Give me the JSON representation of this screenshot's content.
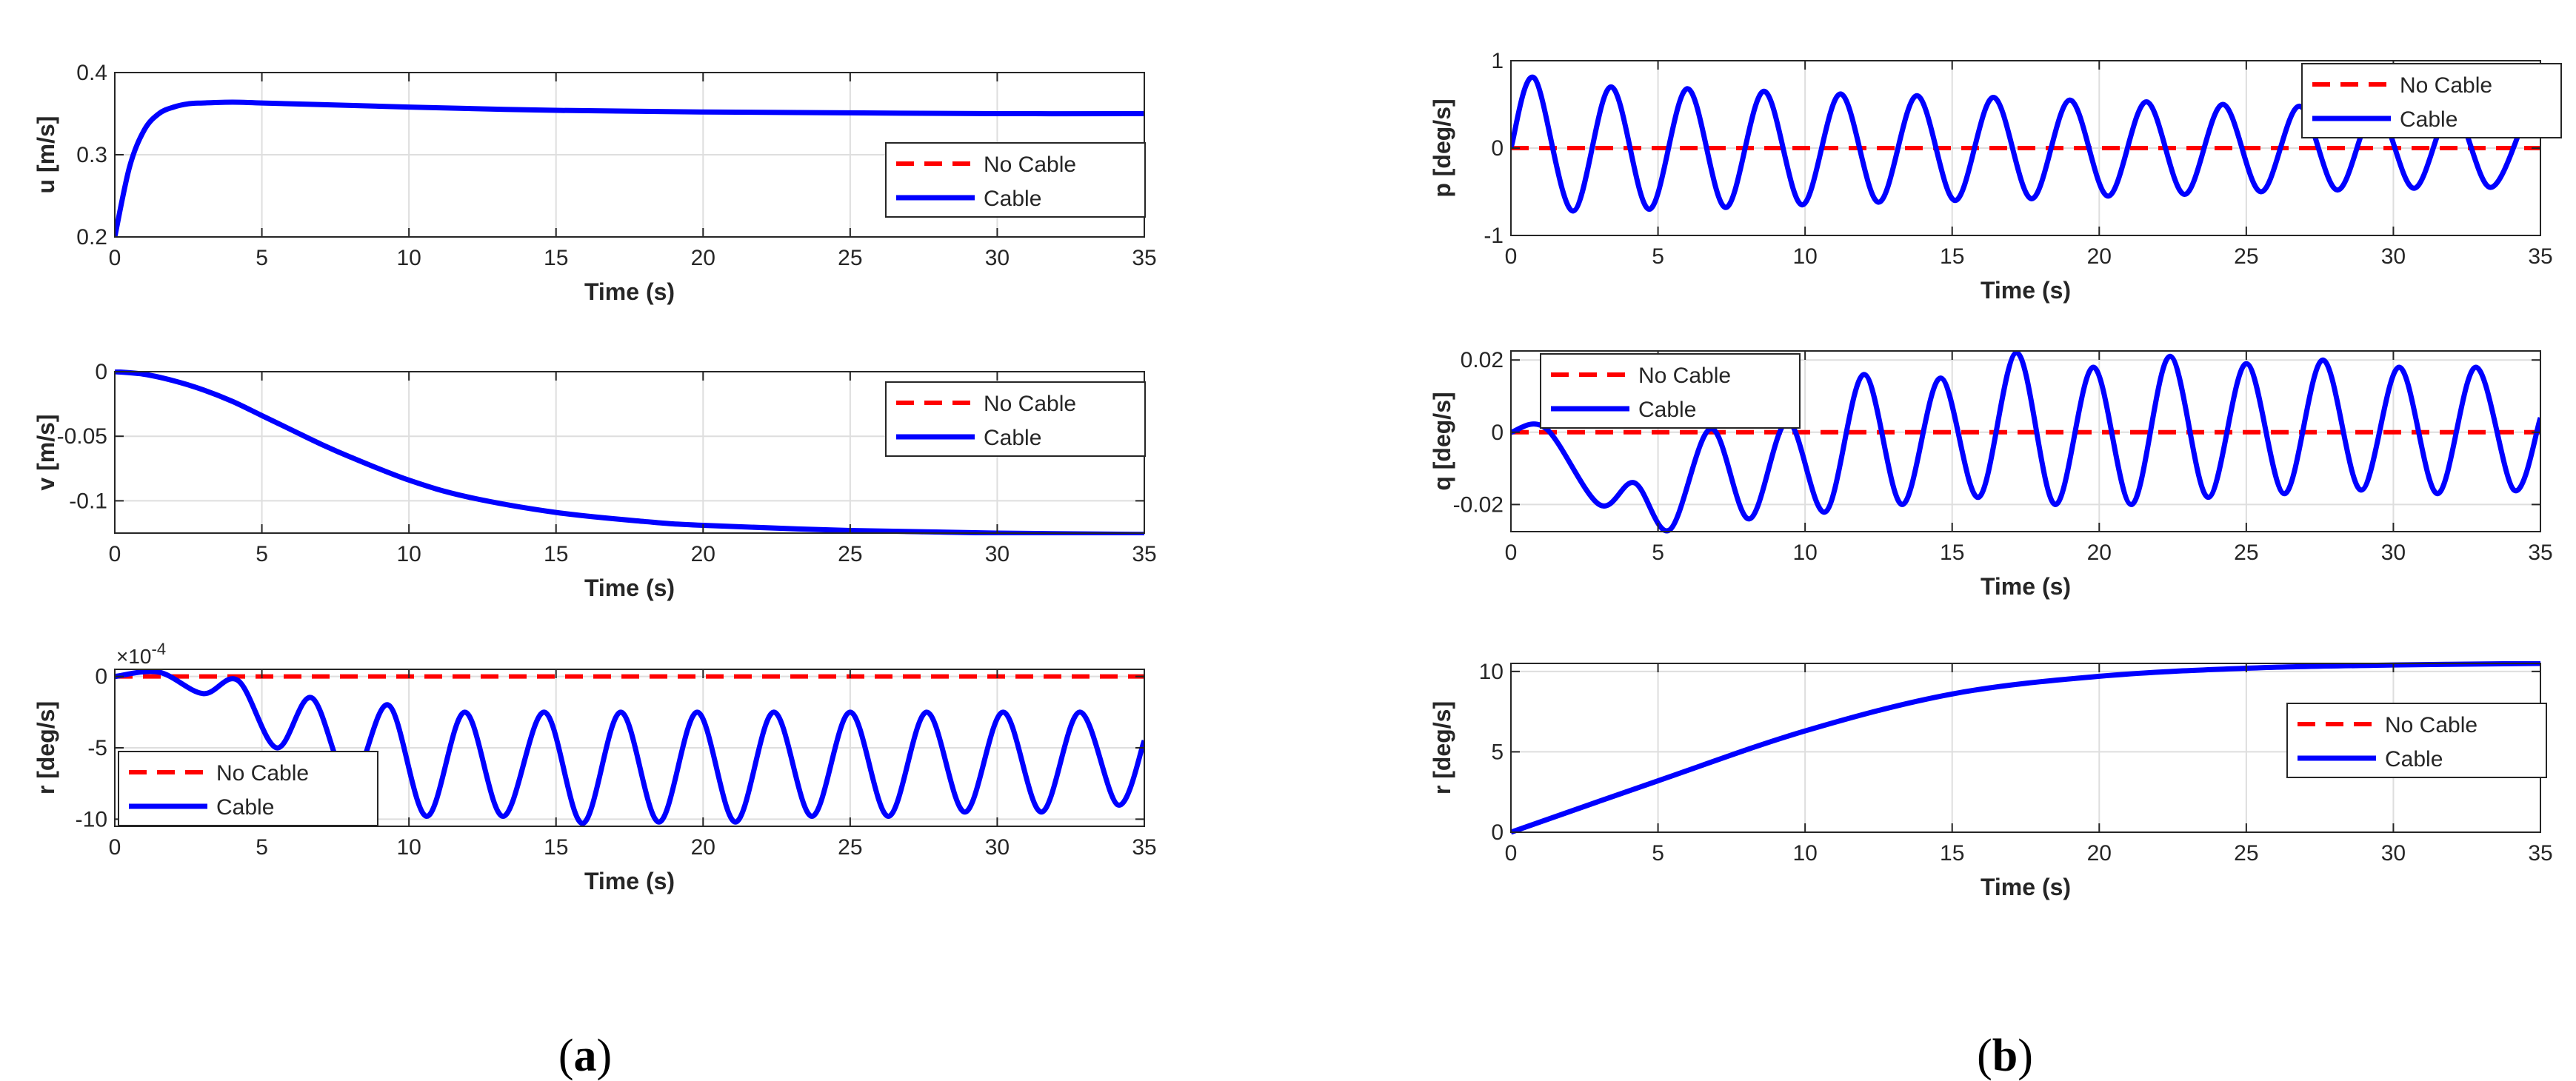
{
  "chart_data": [
    {
      "type": "line",
      "ylabel": "u [m/s]",
      "xlabel": "Time (s)",
      "xlim": [
        0,
        35
      ],
      "ylim": [
        0.2,
        0.4
      ],
      "xticks": [
        "0",
        "5",
        "10",
        "15",
        "20",
        "25",
        "30",
        "35"
      ],
      "yticks": [
        "0.2",
        "0.3",
        "0.4"
      ],
      "exponent": "",
      "grid": true,
      "legend_position": "right",
      "series": [
        {
          "name": "No Cable",
          "color": "#ff0000",
          "dash": true,
          "x": [
            0,
            0.5,
            1,
            1.5,
            2,
            2.5,
            3,
            4,
            5,
            7,
            10,
            15,
            20,
            25,
            30,
            35
          ],
          "y": [
            0.2,
            0.285,
            0.33,
            0.35,
            0.358,
            0.362,
            0.363,
            0.364,
            0.363,
            0.361,
            0.358,
            0.354,
            0.352,
            0.351,
            0.35,
            0.35
          ]
        },
        {
          "name": "Cable",
          "color": "#0000ff",
          "dash": false,
          "x": [
            0,
            0.5,
            1,
            1.5,
            2,
            2.5,
            3,
            4,
            5,
            7,
            10,
            15,
            20,
            25,
            30,
            35
          ],
          "y": [
            0.2,
            0.285,
            0.33,
            0.35,
            0.358,
            0.362,
            0.363,
            0.364,
            0.363,
            0.361,
            0.358,
            0.354,
            0.352,
            0.351,
            0.35,
            0.35
          ]
        }
      ]
    },
    {
      "type": "line",
      "ylabel": "v [m/s]",
      "xlabel": "Time (s)",
      "xlim": [
        0,
        35
      ],
      "ylim": [
        -0.125,
        0
      ],
      "xticks": [
        "0",
        "5",
        "10",
        "15",
        "20",
        "25",
        "30",
        "35"
      ],
      "yticks": [
        "0",
        "-0.05",
        "-0.1"
      ],
      "exponent": "",
      "grid": true,
      "legend_position": "right",
      "series": [
        {
          "name": "No Cable",
          "color": "#ff0000",
          "dash": true,
          "x": [
            0,
            1,
            2,
            3,
            4,
            5,
            6,
            7,
            8,
            10,
            12,
            15,
            18,
            20,
            25,
            30,
            35
          ],
          "y": [
            0,
            -0.002,
            -0.007,
            -0.014,
            -0.023,
            -0.034,
            -0.045,
            -0.056,
            -0.066,
            -0.084,
            -0.097,
            -0.109,
            -0.116,
            -0.119,
            -0.123,
            -0.125,
            -0.126
          ]
        },
        {
          "name": "Cable",
          "color": "#0000ff",
          "dash": false,
          "x": [
            0,
            1,
            2,
            3,
            4,
            5,
            6,
            7,
            8,
            10,
            12,
            15,
            18,
            20,
            25,
            30,
            35
          ],
          "y": [
            0,
            -0.002,
            -0.007,
            -0.014,
            -0.023,
            -0.034,
            -0.045,
            -0.056,
            -0.066,
            -0.084,
            -0.097,
            -0.109,
            -0.116,
            -0.119,
            -0.123,
            -0.125,
            -0.126
          ]
        }
      ]
    },
    {
      "type": "line",
      "ylabel": "r [deg/s]",
      "xlabel": "Time (s)",
      "xlim": [
        0,
        35
      ],
      "ylim": [
        -10.5,
        0.5
      ],
      "xticks": [
        "0",
        "5",
        "10",
        "15",
        "20",
        "25",
        "30",
        "35"
      ],
      "yticks": [
        "0",
        "-5",
        "-10"
      ],
      "exponent": "×10-4",
      "grid": true,
      "legend_position": "bottom-left",
      "series": [
        {
          "name": "No Cable",
          "color": "#ff0000",
          "dash": true,
          "x": [
            0,
            35
          ],
          "y": [
            0,
            0
          ]
        },
        {
          "name": "Cable",
          "color": "#0000ff",
          "dash": false,
          "x": [
            0,
            1.5,
            3,
            4.2,
            5.5,
            6.7,
            8,
            9.3,
            10.6,
            11.9,
            13.2,
            14.6,
            15.9,
            17.2,
            18.5,
            19.8,
            21.1,
            22.4,
            23.7,
            25,
            26.3,
            27.6,
            28.9,
            30.2,
            31.5,
            32.8,
            34.1,
            35
          ],
          "y": [
            0,
            0.3,
            -1.2,
            -0.3,
            -5,
            -1.5,
            -7.5,
            -2,
            -9.8,
            -2.5,
            -9.8,
            -2.5,
            -10.3,
            -2.5,
            -10.2,
            -2.5,
            -10.2,
            -2.5,
            -9.8,
            -2.5,
            -9.8,
            -2.5,
            -9.5,
            -2.5,
            -9.5,
            -2.5,
            -9,
            -4.5
          ]
        }
      ]
    },
    {
      "type": "line",
      "ylabel": "p [deg/s]",
      "xlabel": "Time (s)",
      "xlim": [
        0,
        35
      ],
      "ylim": [
        -1,
        1
      ],
      "xticks": [
        "0",
        "5",
        "10",
        "15",
        "20",
        "25",
        "30",
        "35"
      ],
      "yticks": [
        "1",
        "0",
        "-1"
      ],
      "exponent": "",
      "grid": true,
      "legend_position": "top-right",
      "series": [
        {
          "name": "No Cable",
          "color": "#ff0000",
          "dash": true,
          "x": [
            0,
            35
          ],
          "y": [
            0,
            0
          ]
        },
        {
          "name": "Cable",
          "color": "#0000ff",
          "dash": false,
          "x": [
            0,
            0.8,
            2.1,
            3.4,
            4.7,
            6,
            7.3,
            8.6,
            9.9,
            11.2,
            12.5,
            13.8,
            15.1,
            16.4,
            17.7,
            19,
            20.3,
            21.6,
            22.9,
            24.2,
            25.5,
            26.8,
            28.1,
            29.4,
            30.7,
            32,
            33.3,
            34.6,
            35
          ],
          "y": [
            0,
            0.8,
            -0.72,
            0.7,
            -0.7,
            0.68,
            -0.68,
            0.65,
            -0.65,
            0.62,
            -0.62,
            0.6,
            -0.6,
            0.58,
            -0.58,
            0.55,
            -0.55,
            0.53,
            -0.53,
            0.5,
            -0.5,
            0.48,
            -0.48,
            0.46,
            -0.46,
            0.45,
            -0.45,
            0.43,
            0.4
          ]
        }
      ]
    },
    {
      "type": "line",
      "ylabel": "q [deg/s]",
      "xlabel": "Time (s)",
      "xlim": [
        0,
        35
      ],
      "ylim": [
        -0.0275,
        0.0225
      ],
      "xticks": [
        "0",
        "5",
        "10",
        "15",
        "20",
        "25",
        "30",
        "35"
      ],
      "yticks": [
        "0.02",
        "0",
        "-0.02"
      ],
      "exponent": "",
      "grid": true,
      "legend_position": "top-left",
      "series": [
        {
          "name": "No Cable",
          "color": "#ff0000",
          "dash": true,
          "x": [
            0,
            35
          ],
          "y": [
            0,
            0
          ]
        },
        {
          "name": "Cable",
          "color": "#0000ff",
          "dash": false,
          "x": [
            0,
            1.2,
            3,
            4.2,
            5.4,
            6.8,
            8.1,
            9.4,
            10.7,
            12,
            13.3,
            14.6,
            15.9,
            17.2,
            18.5,
            19.8,
            21.1,
            22.4,
            23.7,
            25,
            26.3,
            27.6,
            28.9,
            30.2,
            31.5,
            32.8,
            34.1,
            35
          ],
          "y": [
            0,
            0.001,
            -0.02,
            -0.014,
            -0.027,
            0.001,
            -0.024,
            0.003,
            -0.022,
            0.016,
            -0.02,
            0.015,
            -0.018,
            0.022,
            -0.02,
            0.018,
            -0.02,
            0.021,
            -0.018,
            0.019,
            -0.017,
            0.02,
            -0.016,
            0.018,
            -0.017,
            0.018,
            -0.016,
            0.004
          ]
        }
      ]
    },
    {
      "type": "line",
      "ylabel": "r [deg/s]",
      "xlabel": "Time (s)",
      "xlim": [
        0,
        35
      ],
      "ylim": [
        0,
        10.5
      ],
      "xticks": [
        "0",
        "5",
        "10",
        "15",
        "20",
        "25",
        "30",
        "35"
      ],
      "yticks": [
        "10",
        "5",
        "0"
      ],
      "exponent": "",
      "grid": true,
      "legend_position": "right",
      "series": [
        {
          "name": "No Cable",
          "color": "#ff0000",
          "dash": true,
          "x": [
            0,
            5,
            10,
            15,
            20,
            25,
            30,
            35
          ],
          "y": [
            0,
            3.2,
            6.3,
            8.6,
            9.7,
            10.2,
            10.4,
            10.5
          ]
        },
        {
          "name": "Cable",
          "color": "#0000ff",
          "dash": false,
          "x": [
            0,
            5,
            10,
            15,
            20,
            25,
            30,
            35
          ],
          "y": [
            0,
            3.2,
            6.3,
            8.6,
            9.7,
            10.2,
            10.4,
            10.5
          ]
        }
      ]
    }
  ],
  "captions": {
    "a": {
      "open": "(",
      "letter": "a",
      "close": ")"
    },
    "b": {
      "open": "(",
      "letter": "b",
      "close": ")"
    }
  }
}
